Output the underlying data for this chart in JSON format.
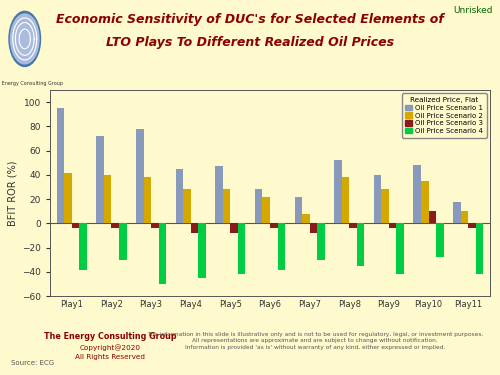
{
  "title_line1": "Economic Sensitivity of DUC's for Selected Elements of",
  "title_line2": "LTO Plays To Different Realized Oil Prices",
  "title_color": "#8B0000",
  "background_color": "#FFFACD",
  "plot_bg_color": "#FFFACD",
  "ylabel": "BFIT ROR (%)",
  "plays": [
    "Play1",
    "Play2",
    "Play3",
    "Play4",
    "Play5",
    "Play6",
    "Play7",
    "Play8",
    "Play9",
    "Play10",
    "Play11"
  ],
  "legend_title": "Realized Price, Flat",
  "legend_labels": [
    "Oil Price Scenario 1",
    "Oil Price Scenario 2",
    "Oil Price Scenario 3",
    "Oil Price Scenario 4"
  ],
  "bar_colors": [
    "#8899BB",
    "#D4A800",
    "#8B1A1A",
    "#00CC44"
  ],
  "unrisked_text": "Unrisked",
  "unrisked_color": "#006400",
  "scenario1": [
    95,
    72,
    78,
    45,
    47,
    28,
    22,
    52,
    40,
    48,
    18
  ],
  "scenario2": [
    42,
    40,
    38,
    28,
    28,
    22,
    8,
    38,
    28,
    35,
    10
  ],
  "scenario3": [
    -4,
    -4,
    -4,
    -8,
    -8,
    -4,
    -8,
    -4,
    -4,
    10,
    -4
  ],
  "scenario4": [
    -38,
    -30,
    -50,
    -45,
    -42,
    -38,
    -30,
    -35,
    -42,
    -28,
    -42
  ],
  "ylim_min": -60,
  "ylim_max": 110,
  "footer_left1": "The Energy Consulting Group",
  "footer_left2": "Copyright@2020",
  "footer_left3": "All Rights Reserved",
  "footer_source": "Source: ECG",
  "footer_right": "The information in this slide is illustrative only and is not to be used for regulatory, legal, or investment purposes.\nAll representations are approximate and are subject to change without notification.\nInformation is provided 'as is' without warranty of any kind, either expressed or implied."
}
